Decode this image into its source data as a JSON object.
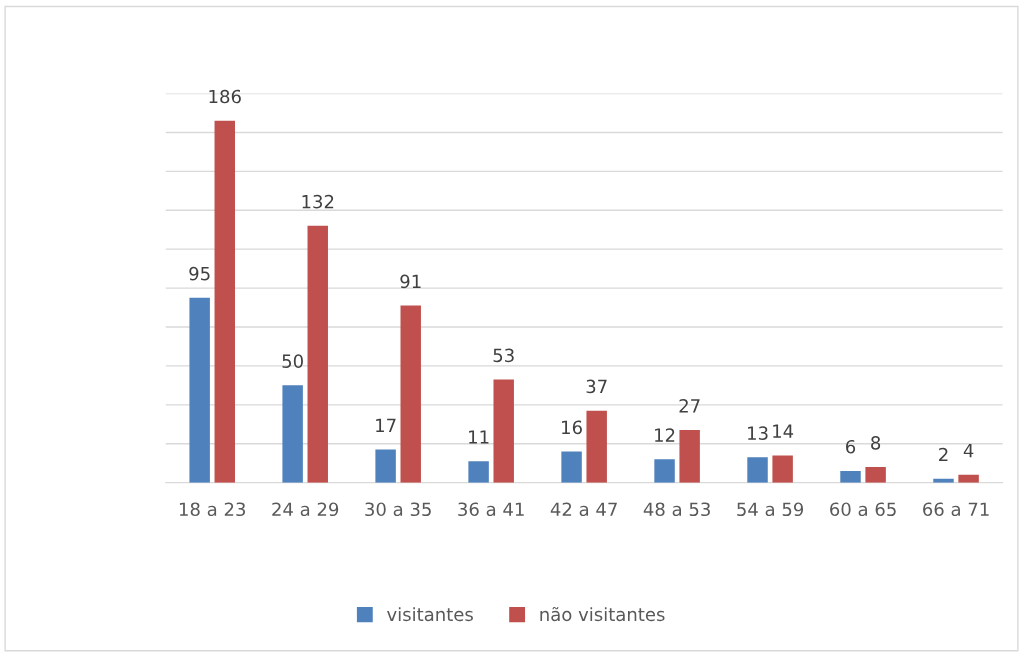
{
  "chart_data": {
    "type": "bar",
    "categories": [
      "18 a 23",
      "24 a 29",
      "30 a 35",
      "36 a 41",
      "42 a 47",
      "48 a 53",
      "54 a 59",
      "60 a 65",
      "66 a 71"
    ],
    "series": [
      {
        "name": "visitantes",
        "color": "#4f81bd",
        "values": [
          95,
          50,
          17,
          11,
          16,
          12,
          13,
          6,
          2
        ]
      },
      {
        "name": "não visitantes",
        "color": "#c0504d",
        "values": [
          186,
          132,
          91,
          53,
          37,
          27,
          14,
          8,
          4
        ]
      }
    ],
    "ylim": [
      0,
      200
    ],
    "yticks": [
      {
        "value": 0,
        "label": null
      },
      {
        "value": 20,
        "label": null
      },
      {
        "value": 40,
        "label": null
      },
      {
        "value": 60,
        "label": null
      },
      {
        "value": 80,
        "label": null
      },
      {
        "value": 100,
        "label": null
      },
      {
        "value": 120,
        "label": null
      },
      {
        "value": 140,
        "label": null
      },
      {
        "value": 160,
        "label": null
      },
      {
        "value": 180,
        "label": null
      },
      {
        "value": 200,
        "label": null
      }
    ],
    "tick_labels": "x",
    "grid": "y",
    "legend": "bottom",
    "data_labels": true
  }
}
